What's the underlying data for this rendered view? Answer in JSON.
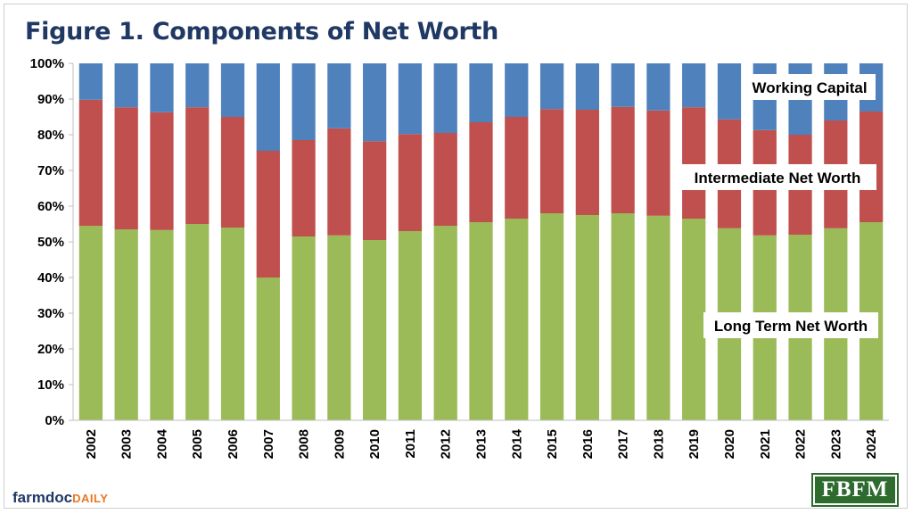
{
  "title": "Figure 1. Components of Net Worth",
  "footer": {
    "brand_main": "farmdoc",
    "brand_sub": "DAILY",
    "logo_text": "FBFM"
  },
  "colors": {
    "long_term": "#9bbb59",
    "intermediate": "#c0504d",
    "working_capital": "#4f81bd",
    "title": "#1f3864"
  },
  "chart_data": {
    "type": "bar",
    "stacked": true,
    "categories": [
      "2002",
      "2003",
      "2004",
      "2005",
      "2006",
      "2007",
      "2008",
      "2009",
      "2010",
      "2011",
      "2012",
      "2013",
      "2014",
      "2015",
      "2016",
      "2017",
      "2018",
      "2019",
      "2020",
      "2021",
      "2022",
      "2023",
      "2024"
    ],
    "series": [
      {
        "name": "Long Term Net Worth",
        "color": "#9bbb59",
        "values": [
          54.5,
          53.5,
          53.3,
          55.0,
          54.0,
          40.0,
          51.5,
          51.8,
          50.5,
          53.0,
          54.5,
          55.5,
          56.5,
          58.0,
          57.5,
          58.0,
          57.3,
          56.5,
          53.8,
          51.8,
          52.0,
          53.8,
          55.5
        ]
      },
      {
        "name": "Intermediate Net Worth",
        "color": "#c0504d",
        "values": [
          35.3,
          34.2,
          33.0,
          32.7,
          31.0,
          35.5,
          27.0,
          30.0,
          27.7,
          27.2,
          26.0,
          28.0,
          28.5,
          29.2,
          29.5,
          29.8,
          29.5,
          31.2,
          30.5,
          29.5,
          28.0,
          30.2,
          31.0
        ]
      },
      {
        "name": "Working Capital",
        "color": "#4f81bd",
        "values": [
          10.2,
          12.3,
          13.7,
          12.3,
          15.0,
          24.5,
          21.5,
          18.2,
          21.8,
          19.8,
          19.5,
          16.5,
          15.0,
          12.8,
          13.0,
          12.2,
          13.2,
          12.3,
          15.7,
          18.7,
          20.0,
          16.0,
          13.5
        ]
      }
    ],
    "ylim": [
      0,
      100
    ],
    "yticks": [
      "0%",
      "10%",
      "20%",
      "30%",
      "40%",
      "50%",
      "60%",
      "70%",
      "80%",
      "90%",
      "100%"
    ],
    "annotations": [
      "Working Capital",
      "Intermediate Net Worth",
      "Long Term Net Worth"
    ],
    "grid": false,
    "legend": "none"
  }
}
